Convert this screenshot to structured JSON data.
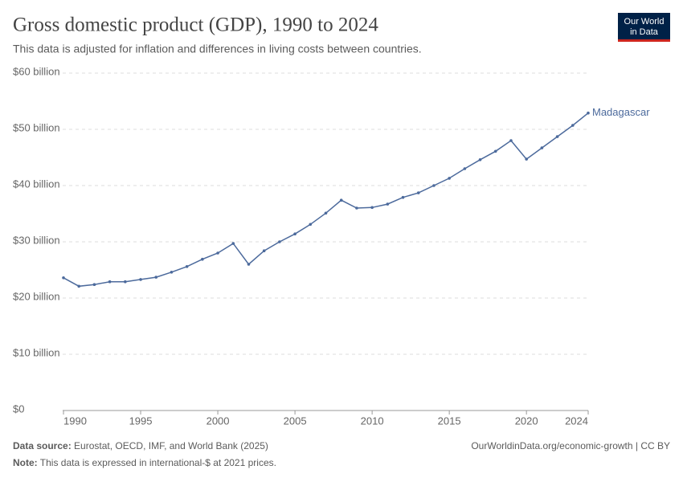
{
  "chart_data": {
    "type": "line",
    "title": "Gross domestic product (GDP), 1990 to 2024",
    "subtitle": "This data is adjusted for inflation and differences in living costs between countries.",
    "logo": [
      "Our World",
      "in Data"
    ],
    "x": [
      1990,
      1991,
      1992,
      1993,
      1994,
      1995,
      1996,
      1997,
      1998,
      1999,
      2000,
      2001,
      2002,
      2003,
      2004,
      2005,
      2006,
      2007,
      2008,
      2009,
      2010,
      2011,
      2012,
      2013,
      2014,
      2015,
      2016,
      2017,
      2018,
      2019,
      2020,
      2021,
      2022,
      2023,
      2024
    ],
    "series": [
      {
        "name": "Madagascar",
        "color": "#4c6a9c",
        "values": [
          23.6,
          22.1,
          22.4,
          22.9,
          22.9,
          23.3,
          23.7,
          24.6,
          25.6,
          26.9,
          28.0,
          29.7,
          26.0,
          28.4,
          30.0,
          31.4,
          33.1,
          35.1,
          37.4,
          36.0,
          36.1,
          36.7,
          37.9,
          38.7,
          40.0,
          41.3,
          43.0,
          44.6,
          46.1,
          48.0,
          44.7,
          46.7,
          48.7,
          50.7,
          52.9
        ]
      }
    ],
    "xlim": [
      1990,
      2024
    ],
    "xticks": [
      1990,
      1995,
      2000,
      2005,
      2010,
      2015,
      2020,
      2024
    ],
    "ylim": [
      0,
      60
    ],
    "yticks": [
      {
        "value": 0,
        "label": "$0"
      },
      {
        "value": 10,
        "label": "$10 billion"
      },
      {
        "value": 20,
        "label": "$20 billion"
      },
      {
        "value": 30,
        "label": "$30 billion"
      },
      {
        "value": 40,
        "label": "$40 billion"
      },
      {
        "value": 50,
        "label": "$50 billion"
      },
      {
        "value": 60,
        "label": "$60 billion"
      }
    ],
    "grid": true,
    "source_label": "Data source:",
    "source": "Eurostat, OECD, IMF, and World Bank (2025)",
    "url": "OurWorldinData.org/economic-growth | CC BY",
    "note_label": "Note:",
    "note": "This data is expressed in international-$ at 2021 prices."
  }
}
